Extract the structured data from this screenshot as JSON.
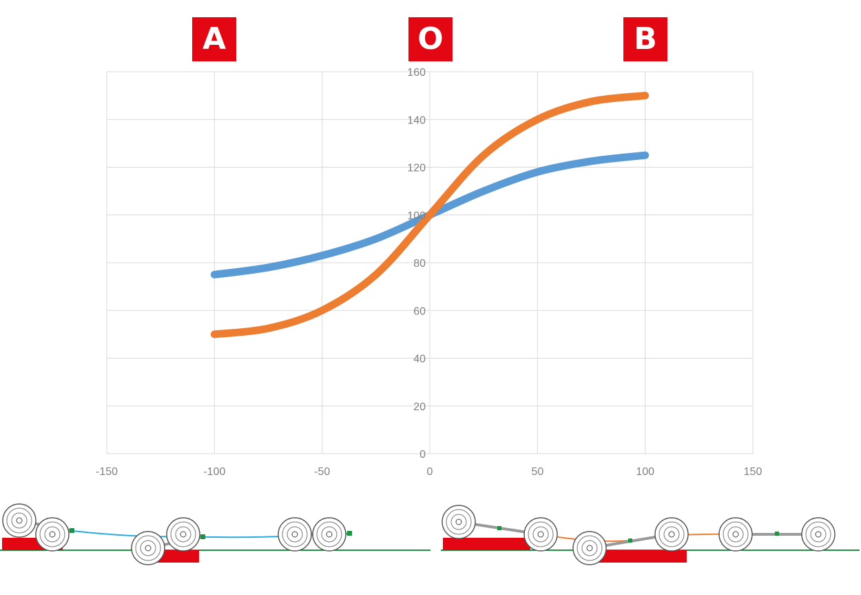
{
  "markers": {
    "a": "A",
    "o": "O",
    "b": "B"
  },
  "chart_data": {
    "type": "line",
    "title": "",
    "xlabel": "",
    "ylabel": "",
    "xlim": [
      -150,
      150
    ],
    "ylim": [
      0,
      160
    ],
    "x_ticks": [
      -150,
      -100,
      -50,
      0,
      50,
      100,
      150
    ],
    "y_ticks": [
      0,
      20,
      40,
      60,
      80,
      100,
      120,
      140,
      160
    ],
    "grid": true,
    "legend": "none",
    "series": [
      {
        "color": "#5b9bd5",
        "x": [
          -100,
          -75,
          -50,
          -25,
          0,
          25,
          50,
          75,
          100
        ],
        "y": [
          75,
          78,
          83,
          90,
          100,
          110,
          118,
          122.5,
          125
        ]
      },
      {
        "color": "#ed7d31",
        "x": [
          -100,
          -75,
          -50,
          -25,
          0,
          25,
          50,
          75,
          100
        ],
        "y": [
          50,
          52.5,
          60,
          75,
          100,
          125,
          140,
          147.5,
          150
        ]
      }
    ]
  },
  "colors": {
    "marker_red": "#e30613",
    "ground_green": "#1a9641",
    "blue_link": "#29a9e0",
    "orange_link": "#ed7d31"
  }
}
